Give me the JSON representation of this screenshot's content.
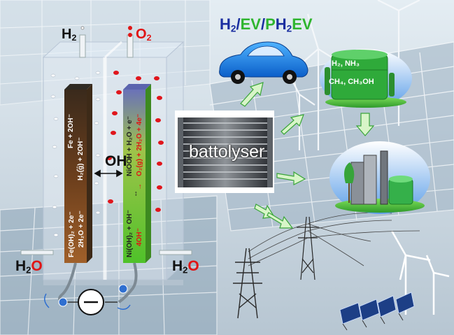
{
  "labels": {
    "h2_top": {
      "main": "H",
      "sub": "2"
    },
    "o2_top": {
      "main": "O",
      "sub": "2"
    },
    "oh_ion": {
      "main": "OH",
      "sup": "−"
    },
    "h2o_left": {
      "h": "H",
      "sub": "2",
      "o": "O"
    },
    "h2o_right": {
      "h": "H",
      "sub": "2",
      "o": "O"
    },
    "battolyser": "battolyser"
  },
  "title": {
    "h": "H",
    "h_sub": "2",
    "slash1": "/",
    "ev": "EV",
    "slash2": "/",
    "p": "P",
    "ph_h": "H",
    "ph_sub": "2",
    "ev2": "EV"
  },
  "chemicals": {
    "line1": "H₂, NH₃",
    "line2": "CH₄, CH₃OH"
  },
  "electrode_fe": {
    "eq_top": "Fe + 2OH⁻",
    "eq_top2": "H₂(g) + 2OH⁻",
    "arrow": "↔",
    "eq_bottom": "Fe(OH)₂ + 2e⁻",
    "eq_bottom2": "2H₂O + 2e⁻"
  },
  "electrode_ni": {
    "eq_top": "NiOOH + H₂O + e⁻",
    "eq_top2": "O₂(g) + 2H₂O + 4e⁻",
    "arrow": "↔",
    "arrow2": "→",
    "eq_bottom": "Ni(OH)₂ + OH⁻",
    "eq_bottom2": "4OH⁻"
  },
  "colors": {
    "oxygen_red": "#e01515",
    "h2_blue": "#1a2ea0",
    "ev_green": "#2fb52f",
    "fe_electrode": "#6b3e1c",
    "ni_electrode": "#8fc33a"
  },
  "icons": [
    "car-icon",
    "chemical-tank-icon",
    "factory-icon",
    "power-pylon-icon",
    "wind-turbine-icon",
    "solar-panel-icon",
    "battolyser-stack-icon"
  ]
}
